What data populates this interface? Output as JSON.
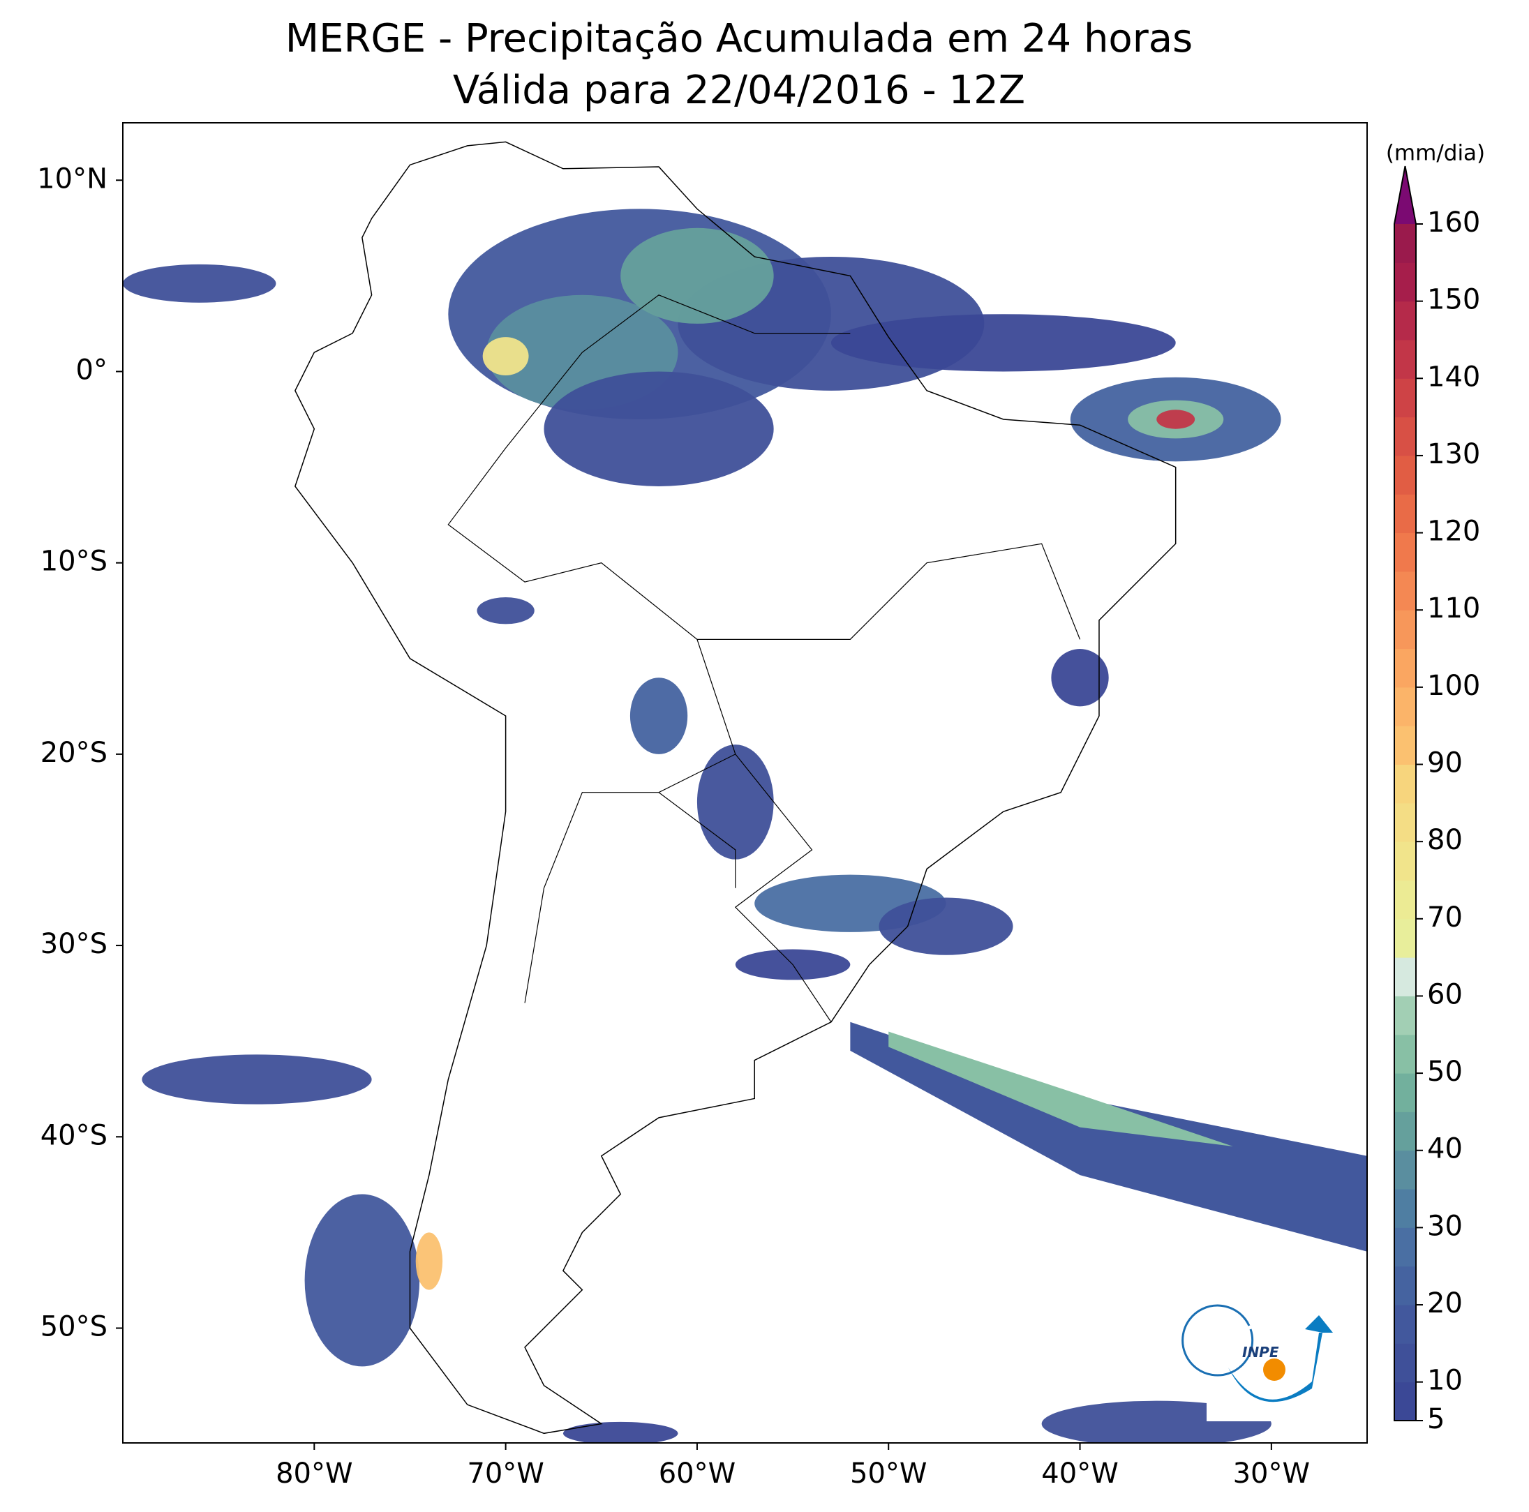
{
  "title": "MERGE - Precipitação Acumulada em 24 horas",
  "subtitle": "Válida para 22/04/2016 - 12Z",
  "map": {
    "lonlim": [
      -90,
      -25
    ],
    "latlim": [
      -56,
      13
    ],
    "xticks": [
      {
        "value": -80,
        "label": "80°W"
      },
      {
        "value": -70,
        "label": "70°W"
      },
      {
        "value": -60,
        "label": "60°W"
      },
      {
        "value": -50,
        "label": "50°W"
      },
      {
        "value": -40,
        "label": "40°W"
      },
      {
        "value": -30,
        "label": "30°W"
      }
    ],
    "yticks": [
      {
        "value": 10,
        "label": "10°N"
      },
      {
        "value": 0,
        "label": "0°"
      },
      {
        "value": -10,
        "label": "10°S"
      },
      {
        "value": -20,
        "label": "20°S"
      },
      {
        "value": -30,
        "label": "30°S"
      },
      {
        "value": -40,
        "label": "40°S"
      },
      {
        "value": -50,
        "label": "50°S"
      }
    ]
  },
  "colorbar": {
    "unit": "(mm/dia)",
    "lim": [
      5,
      160
    ],
    "ticks": [
      5,
      10,
      20,
      30,
      40,
      50,
      60,
      70,
      80,
      90,
      100,
      110,
      120,
      130,
      140,
      150,
      160
    ],
    "colors": [
      "#3b4896",
      "#3f5099",
      "#42589d",
      "#4563a0",
      "#4a6fa3",
      "#4f7ea2",
      "#5a8e9f",
      "#65a09c",
      "#72b09d",
      "#88c0a5",
      "#a2cfb4",
      "#d6e9df",
      "#e8ee9b",
      "#eceb94",
      "#f1e48b",
      "#f4dd85",
      "#f7d57d",
      "#fbc170",
      "#fbb469",
      "#faa661",
      "#f7975a",
      "#f48853",
      "#f0794c",
      "#e96b47",
      "#e15d44",
      "#d85045",
      "#ce4346",
      "#c23648",
      "#b52a4a",
      "#a61e4b",
      "#9a1a4c"
    ],
    "extend_color": "#7b0a72"
  },
  "logo": "INPE"
}
